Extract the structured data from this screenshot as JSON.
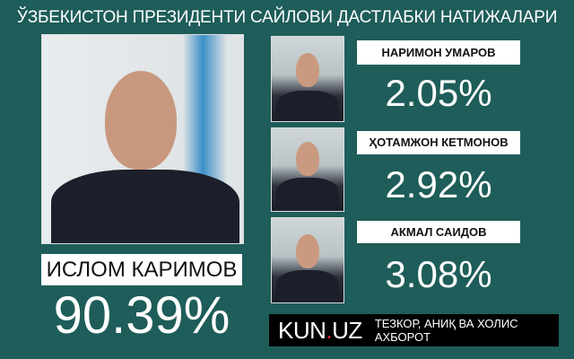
{
  "title": "ЎЗБЕКИСТОН ПРЕЗИДЕНТИ САЙЛОВИ ДАСТЛАБКИ НАТИЖАЛАРИ",
  "winner": {
    "name": "ИСЛОМ КАРИМОВ",
    "percent": "90.39%"
  },
  "candidates": [
    {
      "name": "НАРИМОН УМАРОВ",
      "percent": "2.05%"
    },
    {
      "name": "ҲОТАМЖОН КЕТМОНОВ",
      "percent": "2.92%"
    },
    {
      "name": "АКМАЛ САИДОВ",
      "percent": "3.08%"
    }
  ],
  "footer": {
    "logo": "KUN.UZ",
    "slogan": "ТЕЗКОР, АНИҚ ВА ХОЛИС АХБОРОТ"
  },
  "colors": {
    "background": "#1e5d59",
    "accent": "#e0203a"
  }
}
